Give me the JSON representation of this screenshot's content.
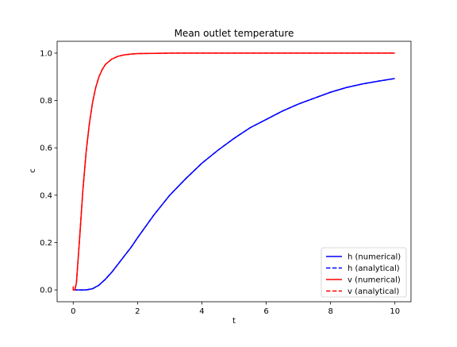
{
  "chart_data": {
    "type": "line",
    "title": "Mean outlet temperature",
    "xlabel": "t",
    "ylabel": "c",
    "xlim": [
      -0.5,
      10.5
    ],
    "ylim": [
      -0.05,
      1.05
    ],
    "xticks": [
      0,
      2,
      4,
      6,
      8,
      10
    ],
    "yticks": [
      0.0,
      0.2,
      0.4,
      0.6,
      0.8,
      1.0
    ],
    "xtick_labels": [
      "0",
      "2",
      "4",
      "6",
      "8",
      "10"
    ],
    "ytick_labels": [
      "0.0",
      "0.2",
      "0.4",
      "0.6",
      "0.8",
      "1.0"
    ],
    "grid": false,
    "legend_position": "bottom-right",
    "series": [
      {
        "name": "h (numerical)",
        "color": "#0000ff",
        "style": "solid",
        "x": [
          0.0,
          0.2,
          0.4,
          0.6,
          0.8,
          1.0,
          1.2,
          1.4,
          1.6,
          1.8,
          2.0,
          2.5,
          3.0,
          3.5,
          4.0,
          4.5,
          5.0,
          5.5,
          6.0,
          6.5,
          7.0,
          7.5,
          8.0,
          8.5,
          9.0,
          9.5,
          10.0
        ],
        "y": [
          0.0,
          0.0,
          0.0,
          0.005,
          0.02,
          0.045,
          0.075,
          0.11,
          0.145,
          0.18,
          0.22,
          0.315,
          0.4,
          0.47,
          0.535,
          0.59,
          0.64,
          0.685,
          0.72,
          0.755,
          0.785,
          0.81,
          0.835,
          0.855,
          0.87,
          0.882,
          0.893
        ]
      },
      {
        "name": "h (analytical)",
        "color": "#0000ff",
        "style": "dashed",
        "x": [
          0.0,
          0.2,
          0.4,
          0.6,
          0.8,
          1.0,
          1.2,
          1.4,
          1.6,
          1.8,
          2.0,
          2.5,
          3.0,
          3.5,
          4.0,
          4.5,
          5.0,
          5.5,
          6.0,
          6.5,
          7.0,
          7.5,
          8.0,
          8.5,
          9.0,
          9.5,
          10.0
        ],
        "y": [
          0.0,
          0.0,
          0.0,
          0.005,
          0.02,
          0.045,
          0.075,
          0.11,
          0.145,
          0.18,
          0.22,
          0.315,
          0.4,
          0.47,
          0.535,
          0.59,
          0.64,
          0.685,
          0.72,
          0.755,
          0.785,
          0.81,
          0.835,
          0.855,
          0.87,
          0.882,
          0.893
        ]
      },
      {
        "name": "v (numerical)",
        "color": "#ff0000",
        "style": "solid",
        "x": [
          0.0,
          0.05,
          0.1,
          0.2,
          0.3,
          0.4,
          0.5,
          0.6,
          0.7,
          0.8,
          0.9,
          1.0,
          1.2,
          1.4,
          1.6,
          1.8,
          2.0,
          2.5,
          3.0,
          4.0,
          5.0,
          6.0,
          7.0,
          8.0,
          9.0,
          10.0
        ],
        "y": [
          0.0,
          0.0,
          0.03,
          0.22,
          0.42,
          0.58,
          0.7,
          0.79,
          0.855,
          0.9,
          0.93,
          0.952,
          0.975,
          0.987,
          0.993,
          0.996,
          0.998,
          0.999,
          1.0,
          1.0,
          1.0,
          1.0,
          1.0,
          1.0,
          1.0,
          1.0
        ]
      },
      {
        "name": "v (analytical)",
        "color": "#ff0000",
        "style": "dashed",
        "x": [
          0.0,
          0.0,
          0.05,
          0.1,
          0.2,
          0.3,
          0.4,
          0.5,
          0.6,
          0.7,
          0.8,
          0.9,
          1.0,
          1.2,
          1.4,
          1.6,
          1.8,
          2.0,
          2.5,
          3.0,
          4.0,
          5.0,
          6.0,
          7.0,
          8.0,
          9.0,
          10.0
        ],
        "y": [
          0.015,
          0.0,
          0.0,
          0.03,
          0.22,
          0.42,
          0.58,
          0.7,
          0.79,
          0.855,
          0.9,
          0.93,
          0.952,
          0.975,
          0.987,
          0.993,
          0.996,
          0.998,
          0.999,
          1.0,
          1.0,
          1.0,
          1.0,
          1.0,
          1.0,
          1.0,
          1.0
        ]
      }
    ]
  }
}
